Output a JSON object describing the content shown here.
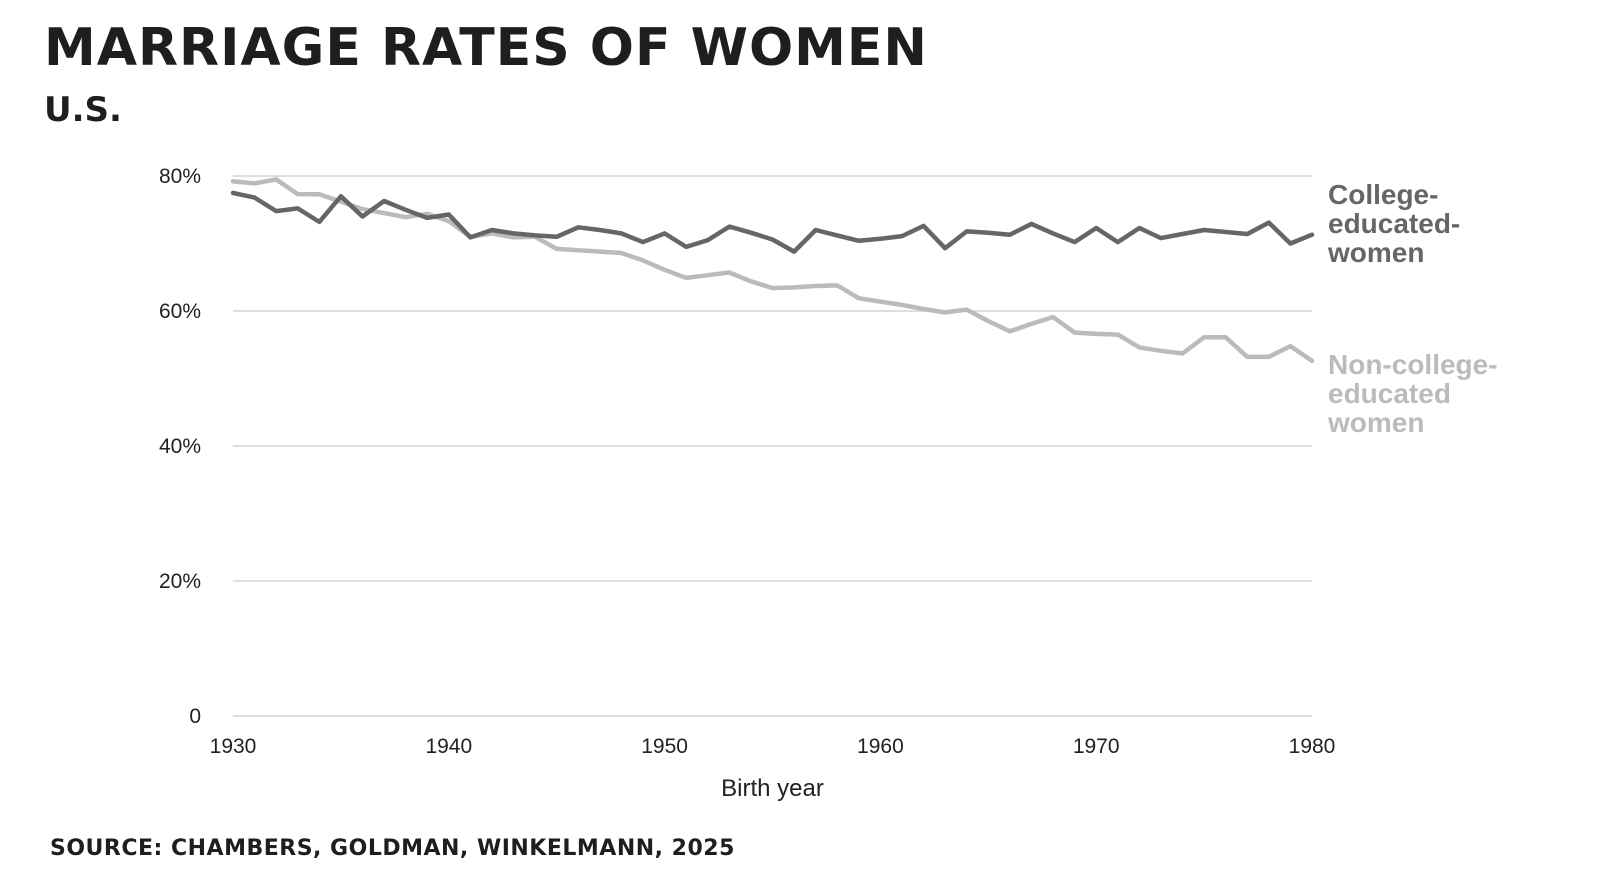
{
  "header": {
    "title": "MARRIAGE RATES OF WOMEN",
    "subtitle": "U.S."
  },
  "footer": {
    "source": "SOURCE: CHAMBERS, GOLDMAN, WINKELMANN, 2025"
  },
  "chart_data": {
    "type": "line",
    "title": "MARRIAGE RATES OF WOMEN",
    "subtitle": "U.S.",
    "xlabel": "Birth year",
    "ylabel": "",
    "xlim": [
      1930,
      1980
    ],
    "ylim": [
      0,
      80
    ],
    "x_ticks": [
      1930,
      1940,
      1950,
      1960,
      1970,
      1980
    ],
    "x_tick_labels": [
      "1930",
      "1940",
      "1950",
      "1960",
      "1970",
      "1980"
    ],
    "y_ticks": [
      0,
      20,
      40,
      60,
      80
    ],
    "y_tick_labels": [
      "0",
      "20%",
      "40%",
      "60%",
      "80%"
    ],
    "grid": true,
    "legend": "direct-labels-right",
    "x": [
      1930,
      1931,
      1932,
      1933,
      1934,
      1935,
      1936,
      1937,
      1938,
      1939,
      1940,
      1941,
      1942,
      1943,
      1944,
      1945,
      1946,
      1947,
      1948,
      1949,
      1950,
      1951,
      1952,
      1953,
      1954,
      1955,
      1956,
      1957,
      1958,
      1959,
      1960,
      1961,
      1962,
      1963,
      1964,
      1965,
      1966,
      1967,
      1968,
      1969,
      1970,
      1971,
      1972,
      1973,
      1974,
      1975,
      1976,
      1977,
      1978,
      1979,
      1980
    ],
    "series": [
      {
        "name": "College-educated-women",
        "label_lines": [
          "College-",
          "educated-",
          "women"
        ],
        "color": "#666666",
        "values": [
          77.5,
          76.8,
          74.8,
          75.2,
          73.2,
          77.0,
          74.0,
          76.3,
          75.0,
          73.8,
          74.3,
          70.9,
          72.0,
          71.5,
          71.2,
          71.0,
          72.4,
          72.0,
          71.5,
          70.2,
          71.5,
          69.5,
          70.5,
          72.5,
          71.6,
          70.6,
          68.8,
          72.0,
          71.2,
          70.4,
          70.7,
          71.1,
          72.6,
          69.3,
          71.8,
          71.6,
          71.3,
          72.9,
          71.5,
          70.2,
          72.3,
          70.2,
          72.3,
          70.8,
          71.4,
          72.0,
          71.7,
          71.4,
          73.1,
          70.0,
          71.3
        ]
      },
      {
        "name": "Non-college-educated women",
        "label_lines": [
          "Non-college-",
          "educated",
          "women"
        ],
        "color": "#bbbbbb",
        "values": [
          79.2,
          78.9,
          79.5,
          77.3,
          77.3,
          76.2,
          75.1,
          74.5,
          73.9,
          74.4,
          73.3,
          71.0,
          71.5,
          70.9,
          71.0,
          69.2,
          69.0,
          68.8,
          68.6,
          67.5,
          66.1,
          64.9,
          65.3,
          65.7,
          64.4,
          63.4,
          63.5,
          63.7,
          63.8,
          61.9,
          61.4,
          60.9,
          60.3,
          59.8,
          60.2,
          58.5,
          57.0,
          58.1,
          59.1,
          56.8,
          56.6,
          56.5,
          54.6,
          54.1,
          53.7,
          56.1,
          56.1,
          53.2,
          53.2,
          54.8,
          52.6
        ]
      }
    ]
  }
}
